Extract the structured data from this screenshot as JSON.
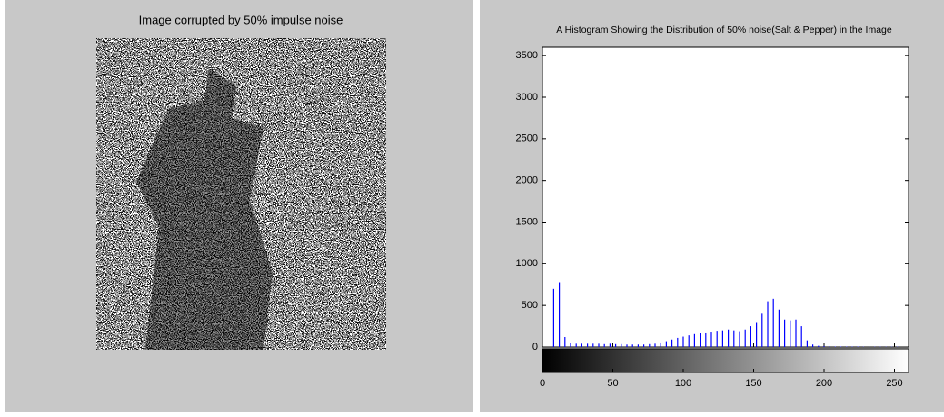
{
  "image_panel": {
    "title": "Image corrupted by 50% impulse noise"
  },
  "chart_data": {
    "type": "histogram",
    "title": "A Histogram Showing the Distribution of 50% noise(Salt & Pepper) in the Image",
    "color": "#0000ff",
    "x": [
      0,
      4,
      8,
      12,
      16,
      20,
      24,
      28,
      32,
      36,
      40,
      44,
      48,
      52,
      56,
      60,
      64,
      68,
      72,
      76,
      80,
      84,
      88,
      92,
      96,
      100,
      104,
      108,
      112,
      116,
      120,
      124,
      128,
      132,
      136,
      140,
      144,
      148,
      152,
      156,
      160,
      164,
      168,
      172,
      176,
      180,
      184,
      188,
      192,
      196,
      200,
      204,
      208,
      212,
      216,
      220,
      224,
      228,
      232,
      236,
      240,
      244,
      248,
      252
    ],
    "values": [
      0,
      0,
      700,
      780,
      120,
      45,
      40,
      40,
      40,
      40,
      40,
      35,
      40,
      35,
      35,
      30,
      30,
      30,
      30,
      35,
      40,
      55,
      70,
      90,
      110,
      125,
      140,
      155,
      165,
      175,
      185,
      195,
      200,
      210,
      200,
      190,
      210,
      250,
      300,
      400,
      550,
      580,
      450,
      330,
      320,
      330,
      250,
      80,
      30,
      15,
      10,
      8,
      5,
      5,
      5,
      5,
      5,
      3,
      3,
      3,
      3,
      3,
      3,
      3
    ],
    "xlim": [
      0,
      260
    ],
    "xticks": [
      0,
      50,
      100,
      150,
      200,
      250
    ],
    "ylim": [
      0,
      3600
    ],
    "yticks": [
      0,
      500,
      1000,
      1500,
      2000,
      2500,
      3000,
      3500
    ]
  }
}
